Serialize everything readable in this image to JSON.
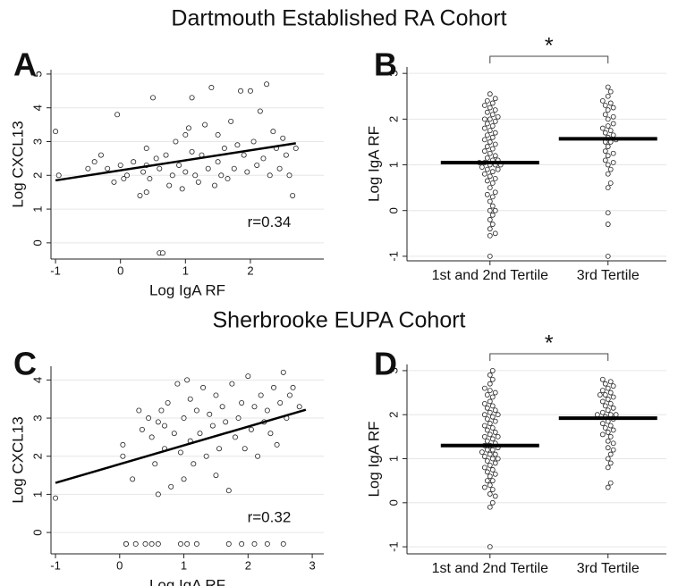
{
  "titles": [
    "Dartmouth Established RA Cohort",
    "Sherbrooke EUPA Cohort"
  ],
  "chart_data": [
    {
      "type": "scatter",
      "panel_label": "A",
      "xlabel": "Log IgA RF",
      "ylabel": "Log CXCL13",
      "x": [
        -1,
        -0.95,
        -0.5,
        -0.4,
        -0.3,
        -0.2,
        -0.1,
        -0.05,
        0,
        0.05,
        0.1,
        0.2,
        0.3,
        0.35,
        0.4,
        0.4,
        0.4,
        0.45,
        0.5,
        0.55,
        0.6,
        0.6,
        0.65,
        0.7,
        0.75,
        0.8,
        0.85,
        0.9,
        0.95,
        1,
        1,
        1.05,
        1.1,
        1.1,
        1.15,
        1.2,
        1.25,
        1.3,
        1.35,
        1.4,
        1.45,
        1.5,
        1.5,
        1.55,
        1.6,
        1.65,
        1.7,
        1.75,
        1.8,
        1.85,
        1.9,
        1.95,
        2,
        2.05,
        2.1,
        2.15,
        2.2,
        2.25,
        2.3,
        2.35,
        2.4,
        2.45,
        2.5,
        2.55,
        2.6,
        2.65,
        2.7
      ],
      "y": [
        3.3,
        2.0,
        2.2,
        2.4,
        2.6,
        2.2,
        1.8,
        3.8,
        2.3,
        1.9,
        2.0,
        2.4,
        1.4,
        2.1,
        1.5,
        2.3,
        2.8,
        1.9,
        4.3,
        2.5,
        -0.3,
        2.2,
        -0.3,
        2.6,
        1.7,
        2.0,
        3.0,
        2.3,
        1.6,
        3.2,
        2.1,
        3.4,
        4.3,
        2.7,
        2.0,
        1.8,
        2.6,
        3.5,
        2.2,
        4.6,
        1.7,
        2.4,
        3.2,
        2.0,
        2.8,
        1.9,
        3.6,
        2.2,
        2.9,
        4.5,
        2.6,
        2.1,
        4.5,
        3.0,
        2.3,
        3.9,
        2.5,
        4.7,
        2.0,
        3.3,
        2.8,
        2.2,
        3.1,
        2.6,
        2.0,
        1.4,
        2.8
      ],
      "fit_line": {
        "x": [
          -1,
          2.7
        ],
        "y": [
          1.85,
          2.95
        ]
      },
      "annotation": "r=0.34",
      "xlim": [
        -1.07,
        3.13
      ],
      "ylim": [
        -0.48,
        5.13
      ],
      "xticks": [
        -1,
        0,
        1,
        2
      ],
      "yticks": [
        0,
        1,
        2,
        3,
        4,
        5
      ],
      "grid": true
    },
    {
      "type": "strip",
      "panel_label": "B",
      "ylabel": "Log IgA RF",
      "categories": [
        "1st and 2nd Tertile",
        "3rd Tertile"
      ],
      "values": [
        [
          -1,
          -0.55,
          -0.5,
          -0.4,
          -0.3,
          -0.2,
          -0.1,
          0,
          0,
          0.1,
          0.2,
          0.3,
          0.35,
          0.4,
          0.5,
          0.6,
          0.65,
          0.7,
          0.75,
          0.8,
          0.85,
          0.9,
          0.9,
          0.95,
          1,
          1,
          1,
          1.05,
          1.05,
          1.1,
          1.1,
          1.15,
          1.2,
          1.25,
          1.3,
          1.35,
          1.4,
          1.45,
          1.5,
          1.55,
          1.6,
          1.65,
          1.7,
          1.75,
          1.8,
          1.85,
          1.9,
          1.95,
          2,
          2,
          2.05,
          2.1,
          2.15,
          2.2,
          2.25,
          2.3,
          2.35,
          2.4,
          2.45,
          2.55
        ],
        [
          -1,
          -0.3,
          -0.05,
          0.5,
          0.6,
          0.8,
          0.9,
          1,
          1.05,
          1.1,
          1.2,
          1.25,
          1.3,
          1.4,
          1.5,
          1.5,
          1.55,
          1.6,
          1.65,
          1.7,
          1.75,
          1.8,
          1.85,
          1.9,
          2,
          2.05,
          2.1,
          2.2,
          2.25,
          2.3,
          2.35,
          2.4,
          2.5,
          2.6,
          2.7
        ]
      ],
      "medians": [
        1.05,
        1.57
      ],
      "significance": "*",
      "ylim": [
        -1.1,
        3.14
      ],
      "yticks": [
        -1,
        0,
        1,
        2,
        3
      ],
      "grid": true
    },
    {
      "type": "scatter",
      "panel_label": "C",
      "xlabel": "Log IgA RF",
      "ylabel": "Log CXCL13",
      "x": [
        -1,
        0.05,
        0.05,
        0.1,
        0.2,
        0.3,
        0.35,
        0.4,
        0.45,
        0.5,
        0.55,
        0.6,
        0.6,
        0.65,
        0.7,
        0.7,
        0.75,
        0.8,
        0.85,
        0.9,
        0.95,
        1,
        1,
        1.05,
        1.1,
        1.1,
        1.15,
        1.2,
        1.25,
        1.3,
        1.35,
        1.4,
        1.45,
        1.5,
        1.5,
        1.55,
        1.6,
        1.65,
        1.7,
        1.75,
        1.8,
        1.85,
        1.9,
        1.95,
        2,
        2.05,
        2.1,
        2.15,
        2.2,
        2.25,
        2.3,
        2.35,
        2.4,
        2.45,
        2.5,
        2.55,
        2.6,
        2.65,
        2.7,
        2.8,
        0.1,
        0.25,
        0.5,
        0.6,
        0.95,
        1.05,
        1.2,
        1.7,
        1.9,
        2.1,
        2.3,
        2.55
      ],
      "y": [
        0.9,
        2.0,
        2.3,
        -0.3,
        1.4,
        3.2,
        2.7,
        -0.3,
        3.0,
        2.5,
        1.8,
        2.9,
        1.0,
        3.2,
        2.2,
        2.8,
        3.4,
        1.2,
        2.6,
        3.9,
        2.1,
        3.0,
        1.4,
        4.0,
        2.4,
        3.5,
        1.8,
        3.2,
        2.6,
        3.8,
        2.0,
        3.1,
        2.8,
        1.5,
        3.6,
        2.2,
        3.3,
        2.9,
        1.1,
        3.9,
        2.5,
        3.0,
        3.4,
        2.2,
        4.1,
        2.7,
        3.3,
        2.0,
        3.6,
        2.9,
        3.2,
        2.6,
        3.8,
        2.3,
        3.4,
        4.2,
        3.0,
        3.6,
        3.8,
        3.3,
        -0.3,
        -0.3,
        -0.3,
        -0.3,
        -0.3,
        -0.3,
        -0.3,
        -0.3,
        -0.3,
        -0.3,
        -0.3,
        -0.3
      ],
      "fit_line": {
        "x": [
          -1,
          2.9
        ],
        "y": [
          1.3,
          3.22
        ]
      },
      "annotation": "r=0.32",
      "xlim": [
        -1.07,
        3.18
      ],
      "ylim": [
        -0.56,
        4.36
      ],
      "xticks": [
        -1,
        0,
        1,
        2,
        3
      ],
      "yticks": [
        0,
        1,
        2,
        3,
        4
      ],
      "grid": true
    },
    {
      "type": "strip",
      "panel_label": "D",
      "ylabel": "Log IgA RF",
      "categories": [
        "1st and 2nd Tertile",
        "3rd Tertile"
      ],
      "values": [
        [
          -1,
          -0.1,
          0,
          0.2,
          0.3,
          0.4,
          0.5,
          0.5,
          0.6,
          0.65,
          0.7,
          0.75,
          0.8,
          0.85,
          0.9,
          0.95,
          1,
          1,
          1.05,
          1.1,
          1.1,
          1.15,
          1.2,
          1.2,
          1.25,
          1.3,
          1.3,
          1.35,
          1.4,
          1.45,
          1.5,
          1.5,
          1.55,
          1.6,
          1.65,
          1.7,
          1.75,
          1.8,
          1.85,
          1.9,
          1.95,
          2,
          2,
          2.05,
          2.1,
          2.15,
          2.2,
          2.25,
          2.3,
          2.4,
          2.45,
          2.5,
          2.55,
          2.6,
          2.7,
          2.8,
          2.9,
          3,
          0.35,
          0.15
        ],
        [
          0.35,
          0.45,
          0.8,
          1,
          1.1,
          1.25,
          1.4,
          1.5,
          1.6,
          1.65,
          1.7,
          1.75,
          1.8,
          1.85,
          1.9,
          1.95,
          2,
          2,
          2.05,
          2.1,
          2.15,
          2.2,
          2.25,
          2.3,
          2.35,
          2.4,
          2.45,
          2.5,
          2.55,
          2.6,
          2.65,
          2.7,
          2.75,
          2.8,
          1.55,
          1.35,
          2.0,
          1.2,
          0.9,
          2.45
        ]
      ],
      "medians": [
        1.3,
        1.92
      ],
      "significance": "*",
      "ylim": [
        -1.16,
        3.14
      ],
      "yticks": [
        -1,
        0,
        1,
        2,
        3
      ],
      "grid": true
    }
  ]
}
